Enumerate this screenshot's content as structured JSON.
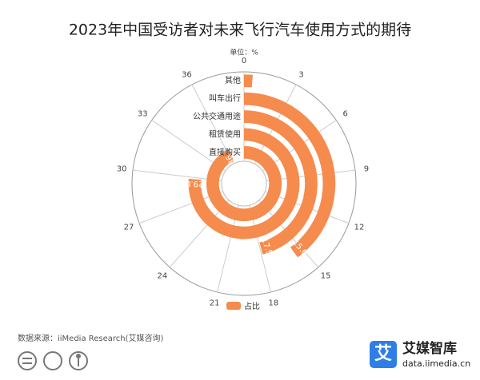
{
  "chart_data": {
    "type": "polar_bar",
    "title": "2023年中国受访者对未来飞行汽车使用方式的期待",
    "unit": "单位：%",
    "categories": [
      "直接购买",
      "租赁使用",
      "公共交通用途",
      "叫车出行",
      "其他"
    ],
    "series": [
      {
        "name": "占比",
        "color": "#f58b4c",
        "values": [
          36.4,
          29.8,
          17.9,
          15.6,
          0.5
        ]
      }
    ],
    "xlim": [
      0,
      39
    ],
    "xticks": [
      0,
      3,
      6,
      9,
      12,
      15,
      18,
      21,
      24,
      27,
      30,
      33,
      36
    ]
  },
  "source": "数据来源：iiMedia Research(艾媒咨询)",
  "logo": {
    "name": "艾媒智库",
    "url": "data.iimedia.cn"
  }
}
